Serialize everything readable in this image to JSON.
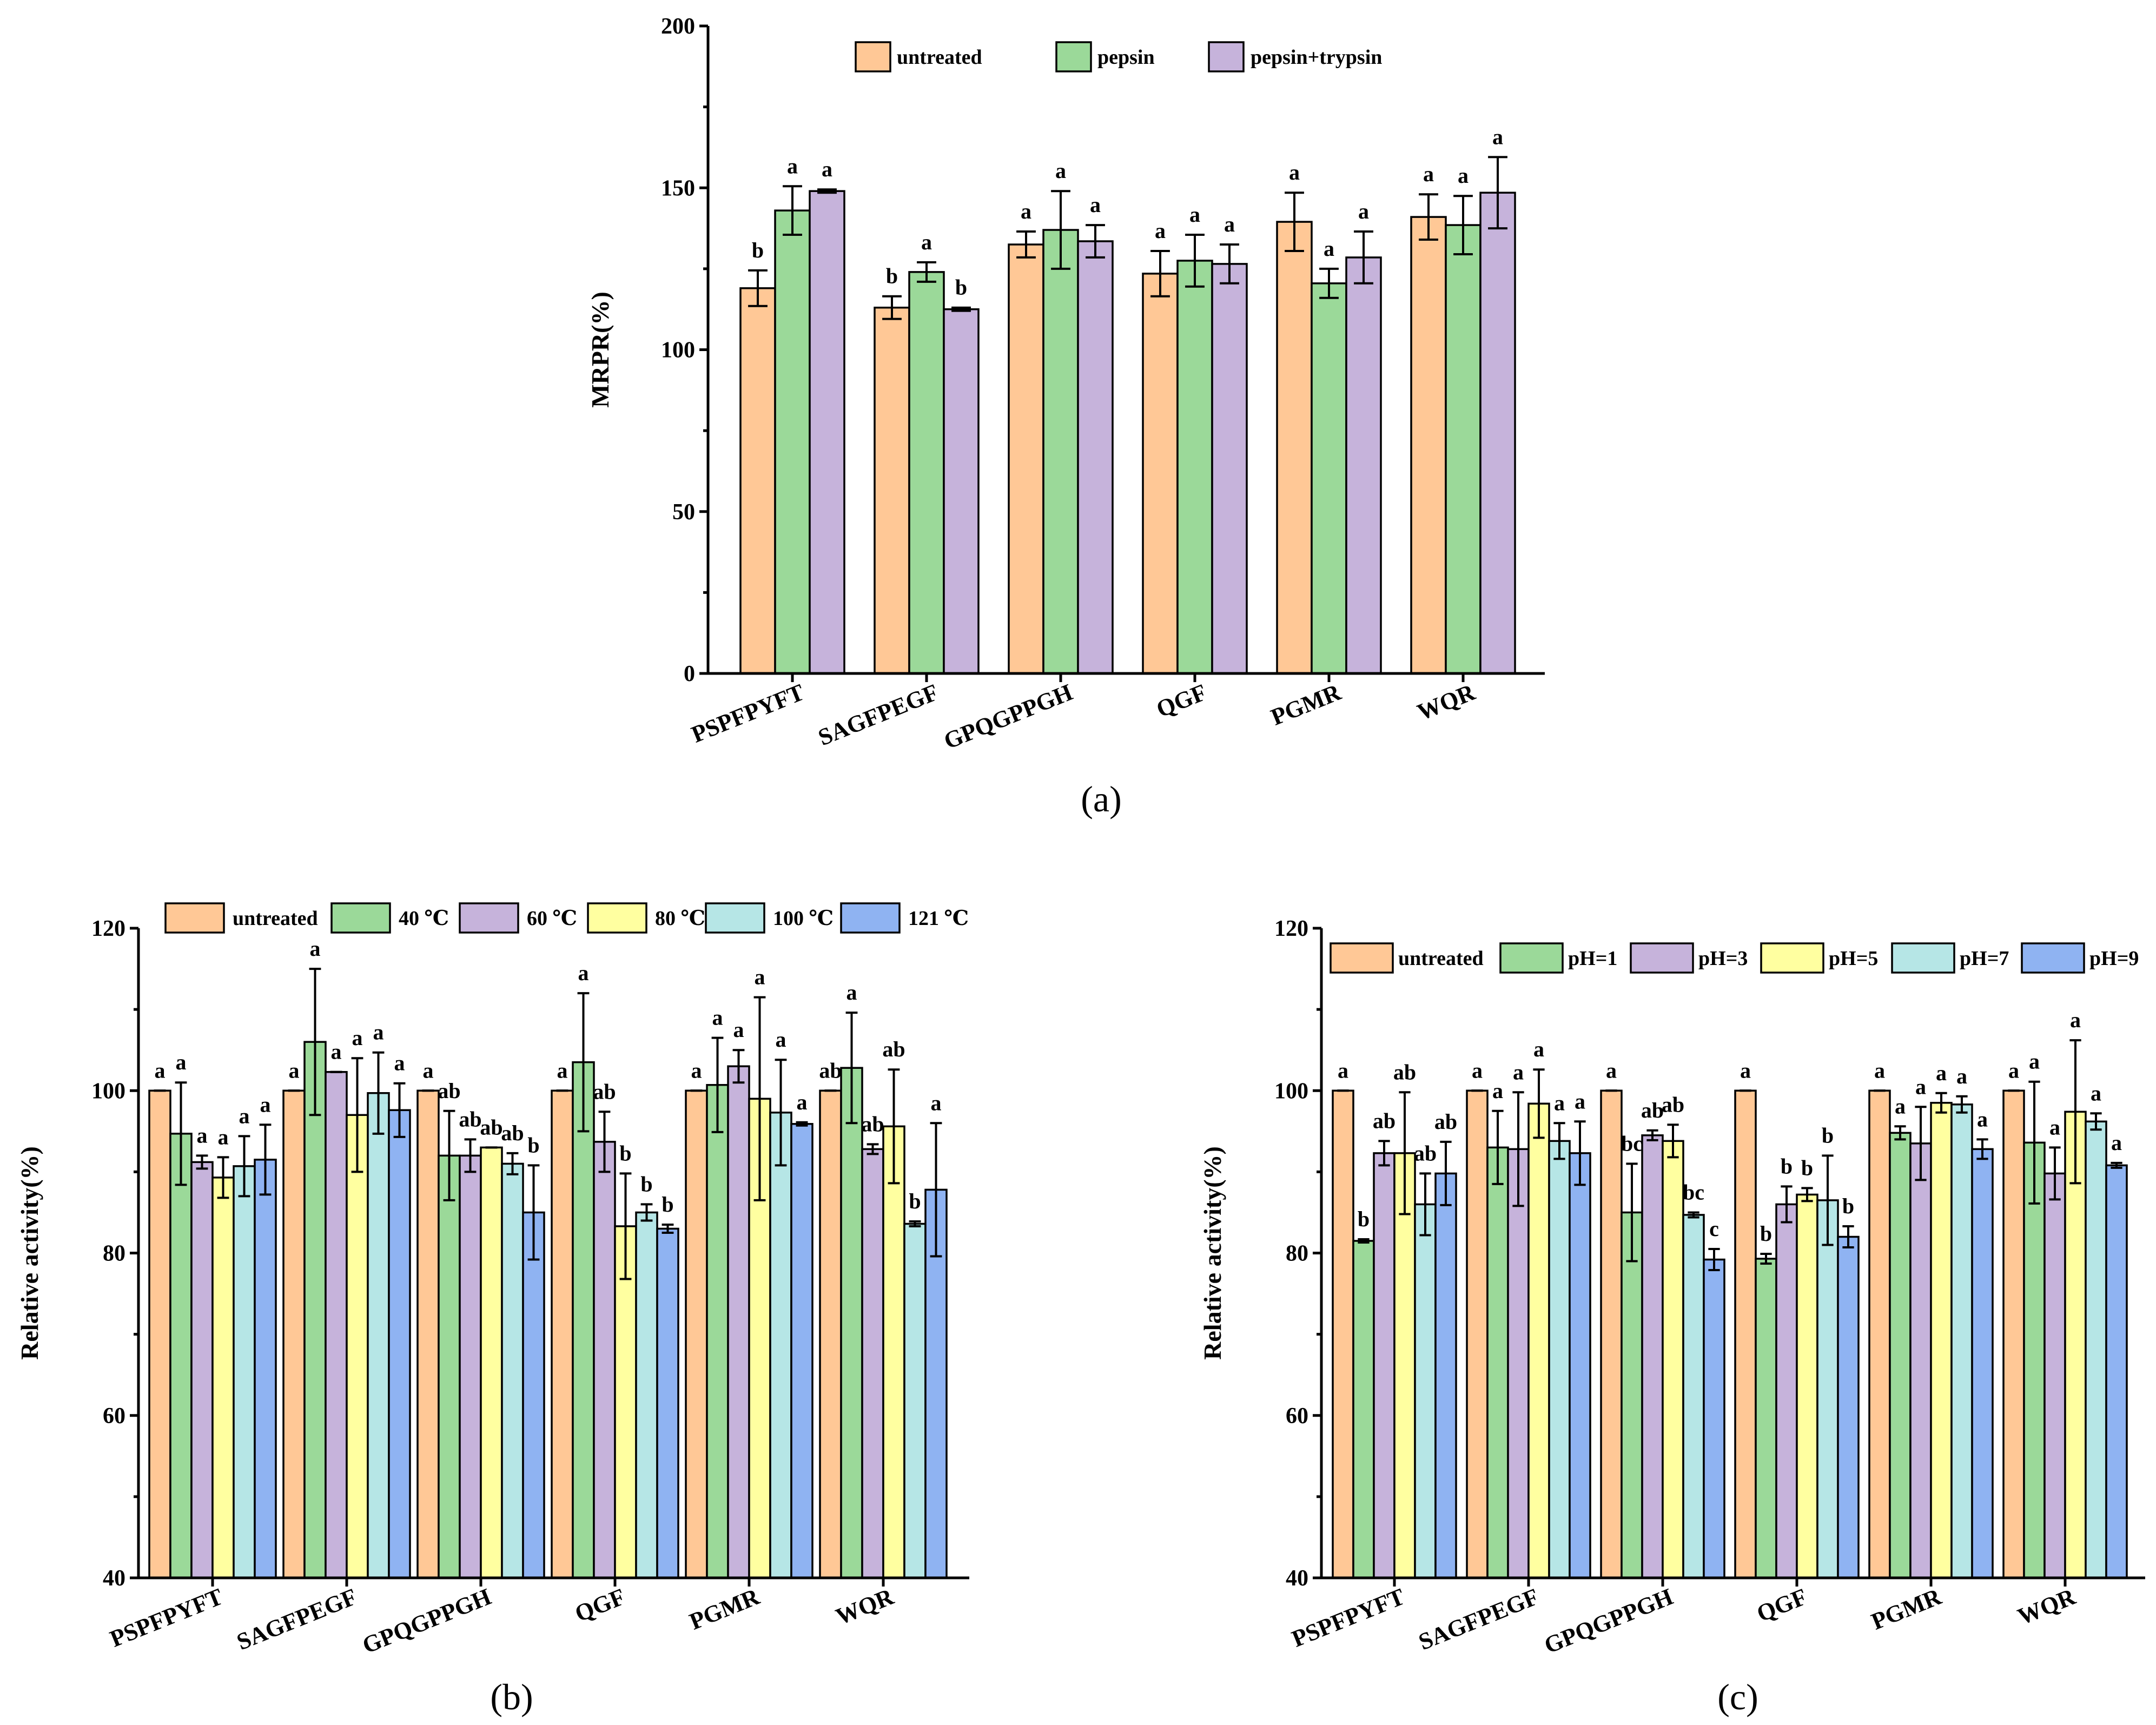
{
  "colors": {
    "untreated": "#FFC896",
    "pepsin": "#9BD999",
    "pepsin_trypsin": "#C6B3DB",
    "t40": "#9BD999",
    "t60": "#C6B3DB",
    "t80": "#FFFFA0",
    "t100": "#B6E6E6",
    "t121": "#8FB3F2",
    "ph1": "#9BD999",
    "ph3": "#C6B3DB",
    "ph5": "#FFFFA0",
    "ph7": "#B6E6E6",
    "ph9": "#8FB3F2"
  },
  "chart_data": [
    {
      "id": "a",
      "type": "bar",
      "caption": "(a)",
      "ylabel": "MRPR(%)",
      "ylim": [
        0,
        200
      ],
      "yticks": [
        "0",
        "50",
        "100",
        "150",
        "200"
      ],
      "categories": [
        "PSPFPYFT",
        "SAGFPEGF",
        "GPQGPPGH",
        "QGF",
        "PGMR",
        "WQR"
      ],
      "series": [
        {
          "name": "untreated",
          "color_key": "untreated",
          "values": [
            119,
            113,
            132.5,
            123.5,
            139.5,
            141
          ],
          "errors": [
            5.5,
            3.5,
            4,
            7,
            9,
            7
          ],
          "letters": [
            "b",
            "b",
            "a",
            "a",
            "a",
            "a"
          ]
        },
        {
          "name": "pepsin",
          "color_key": "pepsin",
          "values": [
            143,
            124,
            137,
            127.5,
            120.5,
            138.5
          ],
          "errors": [
            7.5,
            3,
            12,
            8,
            4.5,
            9
          ],
          "letters": [
            "a",
            "a",
            "a",
            "a",
            "a",
            "a"
          ]
        },
        {
          "name": "pepsin+trypsin",
          "color_key": "pepsin_trypsin",
          "values": [
            149,
            112.5,
            133.5,
            126.5,
            128.5,
            148.5
          ],
          "errors": [
            0.5,
            0.5,
            5,
            6,
            8,
            11
          ],
          "letters": [
            "a",
            "b",
            "a",
            "a",
            "a",
            "a"
          ]
        }
      ]
    },
    {
      "id": "b",
      "type": "bar",
      "caption": "(b)",
      "ylabel": "Relative activity(%)",
      "ylim": [
        40,
        120
      ],
      "yticks": [
        "40",
        "60",
        "80",
        "100",
        "120"
      ],
      "categories": [
        "PSPFPYFT",
        "SAGFPEGF",
        "GPQGPPGH",
        "QGF",
        "PGMR",
        "WQR"
      ],
      "series": [
        {
          "name": "untreated",
          "color_key": "untreated",
          "values": [
            100,
            100,
            100,
            100,
            100,
            100
          ],
          "errors": [
            0,
            0,
            0,
            0,
            0,
            0
          ],
          "letters": [
            "a",
            "a",
            "a",
            "a",
            "a",
            "ab"
          ]
        },
        {
          "name": "40 ℃",
          "color_key": "t40",
          "values": [
            94.7,
            106,
            92,
            103.5,
            100.7,
            102.8
          ],
          "errors": [
            6.3,
            9,
            5.5,
            8.5,
            5.8,
            6.8
          ],
          "letters": [
            "a",
            "a",
            "ab",
            "a",
            "a",
            "a"
          ]
        },
        {
          "name": "60 ℃",
          "color_key": "t60",
          "values": [
            91.2,
            102.3,
            92,
            93.7,
            103,
            92.8
          ],
          "errors": [
            0.8,
            0,
            2,
            3.7,
            2,
            0.6
          ],
          "letters": [
            "a",
            "a",
            "ab",
            "ab",
            "a",
            "ab"
          ]
        },
        {
          "name": "80 ℃",
          "color_key": "t80",
          "values": [
            89.3,
            97,
            93,
            83.3,
            99,
            95.6
          ],
          "errors": [
            2.5,
            7,
            0,
            6.5,
            12.5,
            7
          ],
          "letters": [
            "a",
            "a",
            "ab",
            "b",
            "a",
            "ab"
          ]
        },
        {
          "name": "100 ℃",
          "color_key": "t100",
          "values": [
            90.7,
            99.7,
            91,
            85,
            97.3,
            83.6
          ],
          "errors": [
            3.7,
            5,
            1.3,
            1,
            6.5,
            0.3
          ],
          "letters": [
            "a",
            "a",
            "ab",
            "b",
            "a",
            "b"
          ]
        },
        {
          "name": "121 ℃",
          "color_key": "t121",
          "values": [
            91.5,
            97.6,
            85,
            83,
            95.9,
            87.8
          ],
          "errors": [
            4.3,
            3.3,
            5.8,
            0.5,
            0.2,
            8.2
          ],
          "letters": [
            "a",
            "a",
            "b",
            "b",
            "a",
            "a"
          ]
        }
      ]
    },
    {
      "id": "c",
      "type": "bar",
      "caption": "(c)",
      "ylabel": "Relative activity(%)",
      "ylim": [
        40,
        120
      ],
      "yticks": [
        "40",
        "60",
        "80",
        "100",
        "120"
      ],
      "categories": [
        "PSPFPYFT",
        "SAGFPEGF",
        "GPQGPPGH",
        "QGF",
        "PGMR",
        "WQR"
      ],
      "series": [
        {
          "name": "untreated",
          "color_key": "untreated",
          "values": [
            100,
            100,
            100,
            100,
            100,
            100
          ],
          "errors": [
            0,
            0,
            0,
            0,
            0,
            0
          ],
          "letters": [
            "a",
            "a",
            "a",
            "a",
            "a",
            "a"
          ]
        },
        {
          "name": "pH=1",
          "color_key": "ph1",
          "values": [
            81.5,
            93,
            85,
            79.3,
            94.8,
            93.6
          ],
          "errors": [
            0.2,
            4.5,
            6,
            0.6,
            0.8,
            7.5
          ],
          "letters": [
            "b",
            "a",
            "bc",
            "b",
            "a",
            "a"
          ]
        },
        {
          "name": "pH=3",
          "color_key": "ph3",
          "values": [
            92.3,
            92.8,
            94.5,
            86,
            93.5,
            89.8
          ],
          "errors": [
            1.5,
            7,
            0.6,
            2.2,
            4.5,
            3.2
          ],
          "letters": [
            "ab",
            "a",
            "ab",
            "b",
            "a",
            "a"
          ]
        },
        {
          "name": "pH=5",
          "color_key": "ph5",
          "values": [
            92.3,
            98.4,
            93.8,
            87.2,
            98.5,
            97.4
          ],
          "errors": [
            7.5,
            4.2,
            2,
            0.8,
            1.2,
            8.8
          ],
          "letters": [
            "ab",
            "a",
            "ab",
            "b",
            "a",
            "a"
          ]
        },
        {
          "name": "pH=7",
          "color_key": "ph7",
          "values": [
            86,
            93.8,
            84.7,
            86.5,
            98.3,
            96.2
          ],
          "errors": [
            3.8,
            2.2,
            0.3,
            5.5,
            1,
            1
          ],
          "letters": [
            "ab",
            "a",
            "bc",
            "b",
            "a",
            "a"
          ]
        },
        {
          "name": "pH=9",
          "color_key": "ph9",
          "values": [
            89.8,
            92.3,
            79.2,
            82,
            92.8,
            90.8
          ],
          "errors": [
            3.9,
            3.9,
            1.3,
            1.3,
            1.2,
            0.3
          ],
          "letters": [
            "ab",
            "a",
            "c",
            "b",
            "a",
            "a"
          ]
        }
      ]
    }
  ]
}
